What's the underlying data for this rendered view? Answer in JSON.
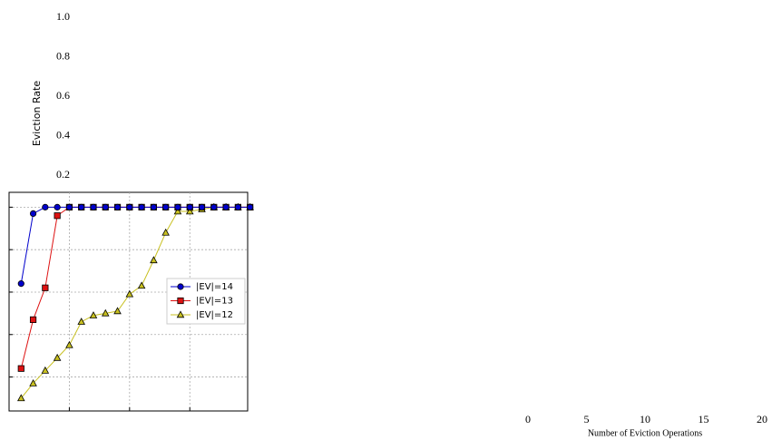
{
  "chart_data": {
    "type": "line",
    "x": [
      1,
      2,
      3,
      4,
      5,
      6,
      7,
      8,
      9,
      10,
      11,
      12,
      13,
      14,
      15,
      16,
      17,
      18,
      19,
      20
    ],
    "xlabel": "Number of Eviction Operations",
    "ylabel": "Eviction Rate",
    "series": [
      {
        "name": "|EV|=14",
        "color": "#0000cc",
        "marker": "circle",
        "values": [
          0.64,
          0.97,
          1.0,
          1.0,
          1.0,
          1.0,
          1.0,
          1.0,
          1.0,
          1.0,
          1.0,
          1.0,
          1.0,
          1.0,
          1.0,
          1.0,
          1.0,
          1.0,
          1.0,
          1.0
        ]
      },
      {
        "name": "|EV|=13",
        "color": "#dd1111",
        "marker": "square",
        "values": [
          0.24,
          0.47,
          0.62,
          0.96,
          1.0,
          1.0,
          1.0,
          1.0,
          1.0,
          1.0,
          1.0,
          1.0,
          1.0,
          1.0,
          1.0,
          1.0,
          1.0,
          1.0,
          1.0,
          1.0
        ]
      },
      {
        "name": "|EV|=12",
        "color": "#c8c020",
        "marker": "triangle",
        "values": [
          0.1,
          0.17,
          0.23,
          0.29,
          0.35,
          0.46,
          0.49,
          0.5,
          0.51,
          0.59,
          0.63,
          0.75,
          0.88,
          0.98,
          0.98,
          0.99,
          1.0,
          1.0,
          1.0,
          1.0
        ]
      }
    ],
    "xlim": [
      0,
      19.8
    ],
    "ylim": [
      0.04,
      1.07
    ],
    "xticks": [
      0,
      5,
      10,
      15,
      20
    ],
    "yticks": [
      {
        "value": 0.2,
        "label": "0.2"
      },
      {
        "value": 0.4,
        "label": "0.4"
      },
      {
        "value": 0.6,
        "label": "0.6"
      },
      {
        "value": 0.8,
        "label": "0.8"
      },
      {
        "value": 1.0,
        "label": "1.0"
      }
    ],
    "grid": true,
    "legend": "right"
  }
}
